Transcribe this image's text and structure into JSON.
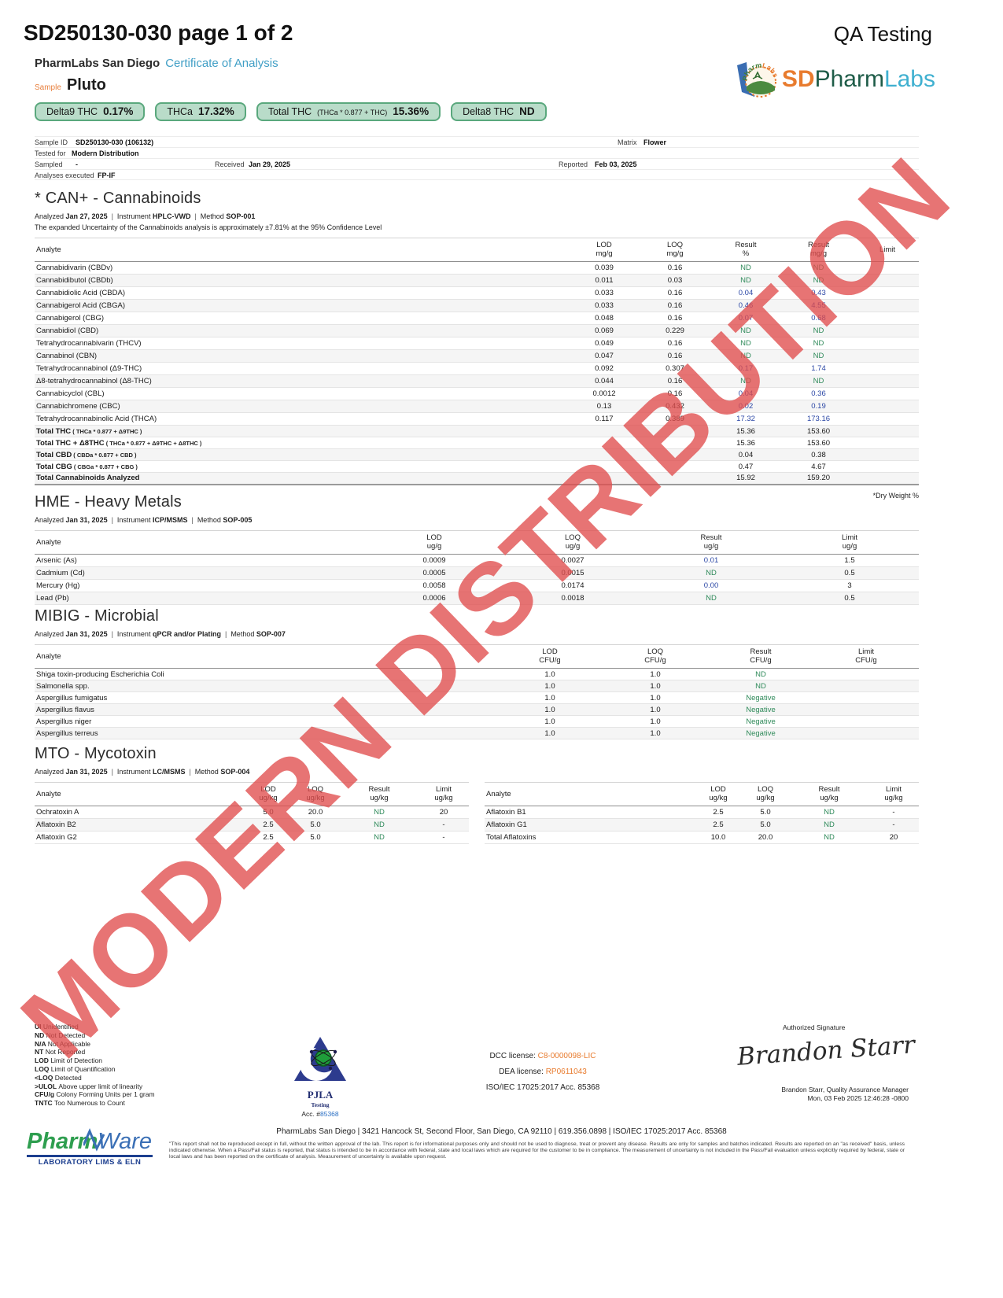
{
  "colors": {
    "badge_bg": "#b9dcc9",
    "badge_border": "#5aa87d",
    "result_green": "#2f8a5a",
    "result_blue": "#2a46a5",
    "watermark_red": "#e04d4d",
    "brand_orange": "#e87b2e",
    "brand_teal": "#3fb0d0",
    "coa_blue": "#419fc6"
  },
  "header": {
    "doc_title": "SD250130-030 page 1 of 2",
    "qa_label": "QA Testing",
    "lab_name": "PharmLabs San Diego",
    "coa_label": "Certificate of Analysis",
    "sample_label": "Sample",
    "sample_name": "Pluto"
  },
  "logo": {
    "prefix": "SD",
    "mid": "Pharm",
    "suffix": "Labs",
    "arc_text": "PharmLabs"
  },
  "badges": [
    {
      "label": "Delta9 THC",
      "formula": "",
      "value": "0.17%"
    },
    {
      "label": "THCa",
      "formula": "",
      "value": "17.32%"
    },
    {
      "label": "Total THC",
      "formula": "(THCa * 0.877 + THC)",
      "value": "15.36%"
    },
    {
      "label": "Delta8 THC",
      "formula": "",
      "value": "ND"
    }
  ],
  "sample_info": {
    "sample_id_label": "Sample ID",
    "sample_id": "SD250130-030 (106132)",
    "matrix_label": "Matrix",
    "matrix": "Flower",
    "tested_for_label": "Tested for",
    "tested_for": "Modern Distribution",
    "sampled_label": "Sampled",
    "sampled": "-",
    "received_label": "Received",
    "received": "Jan 29, 2025",
    "reported_label": "Reported",
    "reported": "Feb 03, 2025",
    "analyses_label": "Analyses executed",
    "analyses": "FP-IF"
  },
  "watermark": "MODERN DISTRIBUTION",
  "sections": {
    "cannabinoids": {
      "title": "* CAN+ - Cannabinoids",
      "meta": [
        "Analyzed",
        "Jan 27, 2025",
        "Instrument",
        "HPLC-VWD",
        "Method",
        "SOP-001"
      ],
      "note": "The expanded Uncertainty of the Cannabinoids analysis is approximately ±7.81% at the 95% Confidence Level",
      "analyte_label": "Analyte",
      "headers": [
        [
          "LOD",
          "mg/g"
        ],
        [
          "LOQ",
          "mg/g"
        ],
        [
          "Result",
          "%"
        ],
        [
          "Result",
          "mg/g"
        ],
        [
          "Limit",
          ""
        ]
      ],
      "rows": [
        {
          "a": "Cannabidivarin (CBDv)",
          "cells": [
            [
              "0.039",
              ""
            ],
            [
              "0.16",
              ""
            ],
            [
              "ND",
              "g"
            ],
            [
              "ND",
              "g"
            ],
            [
              "",
              ""
            ]
          ]
        },
        {
          "a": "Cannabidibutol (CBDb)",
          "cells": [
            [
              "0.011",
              ""
            ],
            [
              "0.03",
              ""
            ],
            [
              "ND",
              "g"
            ],
            [
              "ND",
              "g"
            ],
            [
              "",
              ""
            ]
          ]
        },
        {
          "a": "Cannabidiolic Acid (CBDA)",
          "cells": [
            [
              "0.033",
              ""
            ],
            [
              "0.16",
              ""
            ],
            [
              "0.04",
              "b"
            ],
            [
              "0.43",
              "b"
            ],
            [
              "",
              ""
            ]
          ]
        },
        {
          "a": "Cannabigerol Acid (CBGA)",
          "cells": [
            [
              "0.033",
              ""
            ],
            [
              "0.16",
              ""
            ],
            [
              "0.46",
              "b"
            ],
            [
              "4.55",
              "b"
            ],
            [
              "",
              ""
            ]
          ]
        },
        {
          "a": "Cannabigerol (CBG)",
          "cells": [
            [
              "0.048",
              ""
            ],
            [
              "0.16",
              ""
            ],
            [
              "0.07",
              "b"
            ],
            [
              "0.68",
              "b"
            ],
            [
              "",
              ""
            ]
          ]
        },
        {
          "a": "Cannabidiol (CBD)",
          "cells": [
            [
              "0.069",
              ""
            ],
            [
              "0.229",
              ""
            ],
            [
              "ND",
              "g"
            ],
            [
              "ND",
              "g"
            ],
            [
              "",
              ""
            ]
          ]
        },
        {
          "a": "Tetrahydrocannabivarin (THCV)",
          "cells": [
            [
              "0.049",
              ""
            ],
            [
              "0.16",
              ""
            ],
            [
              "ND",
              "g"
            ],
            [
              "ND",
              "g"
            ],
            [
              "",
              ""
            ]
          ]
        },
        {
          "a": "Cannabinol (CBN)",
          "cells": [
            [
              "0.047",
              ""
            ],
            [
              "0.16",
              ""
            ],
            [
              "ND",
              "g"
            ],
            [
              "ND",
              "g"
            ],
            [
              "",
              ""
            ]
          ]
        },
        {
          "a": "Tetrahydrocannabinol (Δ9-THC)",
          "cells": [
            [
              "0.092",
              ""
            ],
            [
              "0.307",
              ""
            ],
            [
              "0.17",
              "b"
            ],
            [
              "1.74",
              "b"
            ],
            [
              "",
              ""
            ]
          ]
        },
        {
          "a": "Δ8-tetrahydrocannabinol (Δ8-THC)",
          "cells": [
            [
              "0.044",
              ""
            ],
            [
              "0.16",
              ""
            ],
            [
              "ND",
              "g"
            ],
            [
              "ND",
              "g"
            ],
            [
              "",
              ""
            ]
          ]
        },
        {
          "a": "Cannabicyclol (CBL)",
          "cells": [
            [
              "0.0012",
              ""
            ],
            [
              "0.16",
              ""
            ],
            [
              "0.04",
              "b"
            ],
            [
              "0.36",
              "b"
            ],
            [
              "",
              ""
            ]
          ]
        },
        {
          "a": "Cannabichromene (CBC)",
          "cells": [
            [
              "0.13",
              ""
            ],
            [
              "0.432",
              ""
            ],
            [
              "0.02",
              "b"
            ],
            [
              "0.19",
              "b"
            ],
            [
              "",
              ""
            ]
          ]
        },
        {
          "a": "Tetrahydrocannabinolic Acid (THCA)",
          "cells": [
            [
              "0.117",
              ""
            ],
            [
              "0.389",
              ""
            ],
            [
              "17.32",
              "b"
            ],
            [
              "173.16",
              "b"
            ],
            [
              "",
              ""
            ]
          ]
        }
      ],
      "totals": [
        {
          "main": "Total THC",
          "formula": "( THCa * 0.877 + Δ9THC )",
          "pct": "15.36",
          "mg": "153.60"
        },
        {
          "main": "Total THC + Δ8THC",
          "formula": "( THCa * 0.877 + Δ9THC + Δ8THC )",
          "pct": "15.36",
          "mg": "153.60"
        },
        {
          "main": "Total CBD",
          "formula": "( CBDa * 0.877 + CBD )",
          "pct": "0.04",
          "mg": "0.38"
        },
        {
          "main": "Total CBG",
          "formula": "( CBGa * 0.877 + CBG )",
          "pct": "0.47",
          "mg": "4.67"
        },
        {
          "main": "Total Cannabinoids Analyzed",
          "formula": "",
          "pct": "15.92",
          "mg": "159.20"
        }
      ],
      "dry_note": "*Dry Weight %"
    },
    "heavy_metals": {
      "title": "HME - Heavy Metals",
      "meta": [
        "Analyzed",
        "Jan 31, 2025",
        "Instrument",
        "ICP/MSMS",
        "Method",
        "SOP-005"
      ],
      "analyte_label": "Analyte",
      "headers": [
        [
          "LOD",
          "ug/g"
        ],
        [
          "LOQ",
          "ug/g"
        ],
        [
          "Result",
          "ug/g"
        ],
        [
          "Limit",
          "ug/g"
        ]
      ],
      "rows": [
        {
          "a": "Arsenic (As)",
          "cells": [
            [
              "0.0009",
              ""
            ],
            [
              "0.0027",
              ""
            ],
            [
              "0.01",
              "b"
            ],
            [
              "1.5",
              ""
            ]
          ]
        },
        {
          "a": "Cadmium (Cd)",
          "cells": [
            [
              "0.0005",
              ""
            ],
            [
              "0.0015",
              ""
            ],
            [
              "ND",
              "g"
            ],
            [
              "0.5",
              ""
            ]
          ]
        },
        {
          "a": "Mercury (Hg)",
          "cells": [
            [
              "0.0058",
              ""
            ],
            [
              "0.0174",
              ""
            ],
            [
              "0.00",
              "b"
            ],
            [
              "3",
              ""
            ]
          ]
        },
        {
          "a": "Lead (Pb)",
          "cells": [
            [
              "0.0006",
              ""
            ],
            [
              "0.0018",
              ""
            ],
            [
              "ND",
              "g"
            ],
            [
              "0.5",
              ""
            ]
          ]
        }
      ]
    },
    "microbial": {
      "title": "MIBIG - Microbial",
      "meta": [
        "Analyzed",
        "Jan 31, 2025",
        "Instrument",
        "qPCR and/or Plating",
        "Method",
        "SOP-007"
      ],
      "analyte_label": "Analyte",
      "headers": [
        [
          "LOD",
          "CFU/g"
        ],
        [
          "LOQ",
          "CFU/g"
        ],
        [
          "Result",
          "CFU/g"
        ],
        [
          "Limit",
          "CFU/g"
        ]
      ],
      "rows": [
        {
          "a": "Shiga toxin-producing Escherichia Coli",
          "cells": [
            [
              "1.0",
              ""
            ],
            [
              "1.0",
              ""
            ],
            [
              "ND",
              "g"
            ],
            [
              "",
              ""
            ]
          ]
        },
        {
          "a": "Salmonella spp.",
          "cells": [
            [
              "1.0",
              ""
            ],
            [
              "1.0",
              ""
            ],
            [
              "ND",
              "g"
            ],
            [
              "",
              ""
            ]
          ]
        },
        {
          "a": "Aspergillus fumigatus",
          "cells": [
            [
              "1.0",
              ""
            ],
            [
              "1.0",
              ""
            ],
            [
              "Negative",
              "g"
            ],
            [
              "",
              ""
            ]
          ]
        },
        {
          "a": "Aspergillus flavus",
          "cells": [
            [
              "1.0",
              ""
            ],
            [
              "1.0",
              ""
            ],
            [
              "Negative",
              "g"
            ],
            [
              "",
              ""
            ]
          ]
        },
        {
          "a": "Aspergillus niger",
          "cells": [
            [
              "1.0",
              ""
            ],
            [
              "1.0",
              ""
            ],
            [
              "Negative",
              "g"
            ],
            [
              "",
              ""
            ]
          ]
        },
        {
          "a": "Aspergillus terreus",
          "cells": [
            [
              "1.0",
              ""
            ],
            [
              "1.0",
              ""
            ],
            [
              "Negative",
              "g"
            ],
            [
              "",
              ""
            ]
          ]
        }
      ]
    },
    "mycotoxin": {
      "title": "MTO - Mycotoxin",
      "meta": [
        "Analyzed",
        "Jan 31, 2025",
        "Instrument",
        "LC/MSMS",
        "Method",
        "SOP-004"
      ],
      "analyte_label": "Analyte",
      "headers": [
        [
          "LOD",
          "ug/kg"
        ],
        [
          "LOQ",
          "ug/kg"
        ],
        [
          "Result",
          "ug/kg"
        ],
        [
          "Limit",
          "ug/kg"
        ]
      ],
      "rows_left": [
        {
          "a": "Ochratoxin A",
          "cells": [
            [
              "5.0",
              ""
            ],
            [
              "20.0",
              ""
            ],
            [
              "ND",
              "g"
            ],
            [
              "20",
              ""
            ]
          ]
        },
        {
          "a": "Aflatoxin B2",
          "cells": [
            [
              "2.5",
              ""
            ],
            [
              "5.0",
              ""
            ],
            [
              "ND",
              "g"
            ],
            [
              "-",
              ""
            ]
          ]
        },
        {
          "a": "Aflatoxin G2",
          "cells": [
            [
              "2.5",
              ""
            ],
            [
              "5.0",
              ""
            ],
            [
              "ND",
              "g"
            ],
            [
              "-",
              ""
            ]
          ]
        }
      ],
      "rows_right": [
        {
          "a": "Aflatoxin B1",
          "cells": [
            [
              "2.5",
              ""
            ],
            [
              "5.0",
              ""
            ],
            [
              "ND",
              "g"
            ],
            [
              "-",
              ""
            ]
          ]
        },
        {
          "a": "Aflatoxin G1",
          "cells": [
            [
              "2.5",
              ""
            ],
            [
              "5.0",
              ""
            ],
            [
              "ND",
              "g"
            ],
            [
              "-",
              ""
            ]
          ]
        },
        {
          "a": "Total Aflatoxins",
          "cells": [
            [
              "10.0",
              ""
            ],
            [
              "20.0",
              ""
            ],
            [
              "ND",
              "g"
            ],
            [
              "20",
              ""
            ]
          ]
        }
      ]
    }
  },
  "footer": {
    "legend": [
      [
        "UI",
        "Unidentified"
      ],
      [
        "ND",
        "Not Detected"
      ],
      [
        "N/A",
        "Not Applicable"
      ],
      [
        "NT",
        "Not Reported"
      ],
      [
        "LOD",
        "Limit of Detection"
      ],
      [
        "LOQ",
        "Limit of Quantification"
      ],
      [
        "<LOQ",
        "Detected"
      ],
      [
        ">ULOL",
        "Above upper limit of linearity"
      ],
      [
        "CFU/g",
        "Colony Forming Units per 1 gram"
      ],
      [
        "TNTC",
        "Too Numerous to Count"
      ]
    ],
    "pjla": {
      "name": "PJLA",
      "sub": "Testing",
      "acc_prefix": "Acc. #",
      "acc_number": "85368"
    },
    "licenses": {
      "dcc_label": "DCC license:",
      "dcc": "C8-0000098-LIC",
      "dea_label": "DEA license:",
      "dea": "RP0611043",
      "iso": "ISO/IEC 17025:2017  Acc. 85368"
    },
    "signature": {
      "label": "Authorized Signature",
      "script": "Brandon Starr",
      "name_title": "Brandon Starr, Quality Assurance Manager",
      "datetime": "Mon, 03 Feb 2025 12:46:28 -0800"
    },
    "address": "PharmLabs San Diego | 3421 Hancock St, Second Floor, San Diego, CA 92110 | 619.356.0898 | ISO/IEC 17025:2017  Acc. 85368",
    "disclaimer": "\"This report shall not be reproduced except in full, without the written approval of the lab. This report is for informational purposes only and should not be used to diagnose, treat or prevent any disease. Results are only for samples and batches indicated. Results are reported on an \"as received\" basis, unless indicated otherwise. When a Pass/Fail status is reported, that status is intended to be in accordance with federal, state and local laws which are required for the customer to be in compliance. The measurement of uncertainty is not included in the Pass/Fail evaluation unless explicitly required by federal, state or local laws and has been reported on the certificate of analysis. Measurement of uncertainty is available upon request.",
    "pharmware": {
      "pharm": "Pharm",
      "ware": "Ware",
      "tagline": "LABORATORY LIMS & ELN"
    }
  }
}
